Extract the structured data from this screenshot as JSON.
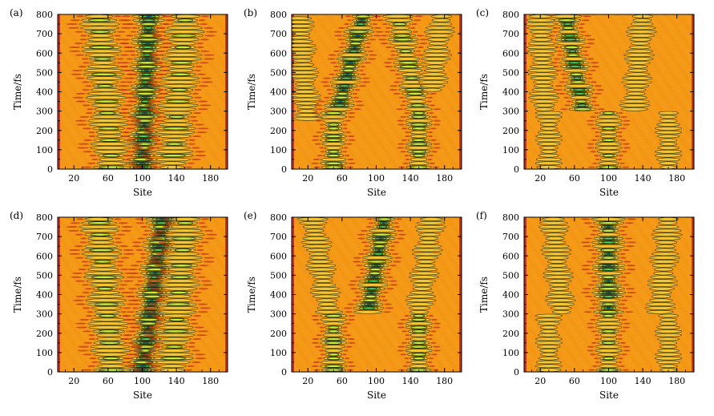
{
  "chart_data": [
    {
      "panel": "a",
      "type": "heatmap",
      "label": "(a)",
      "xlabel": "Site",
      "ylabel": "Time/fs",
      "xlim": [
        1,
        200
      ],
      "ylim": [
        0,
        800
      ],
      "xticks": [
        20,
        60,
        100,
        140,
        180
      ],
      "yticks": [
        0,
        100,
        200,
        300,
        400,
        500,
        600,
        700,
        800
      ],
      "wave_packets": [
        {
          "center_site": 100,
          "start_time": 0,
          "end_time": 800,
          "drift_sites_per_fs": 0.01,
          "width": 10,
          "strength": 1.0
        },
        {
          "center_site": 65,
          "start_time": 0,
          "end_time": 800,
          "drift_sites_per_fs": -0.02,
          "width": 12,
          "strength": 0.55
        },
        {
          "center_site": 135,
          "start_time": 0,
          "end_time": 800,
          "drift_sites_per_fs": 0.02,
          "width": 12,
          "strength": 0.55
        }
      ]
    },
    {
      "panel": "b",
      "type": "heatmap",
      "label": "(b)",
      "xlabel": "Site",
      "ylabel": "Time/fs",
      "xlim": [
        1,
        200
      ],
      "ylim": [
        0,
        800
      ],
      "xticks": [
        20,
        60,
        100,
        140,
        180
      ],
      "yticks": [
        0,
        100,
        200,
        300,
        400,
        500,
        600,
        700,
        800
      ],
      "wave_packets": [
        {
          "center_site": 50,
          "start_time": 0,
          "end_time": 300,
          "drift_sites_per_fs": 0.0,
          "width": 8,
          "strength": 0.7
        },
        {
          "center_site": 150,
          "start_time": 0,
          "end_time": 300,
          "drift_sites_per_fs": 0.0,
          "width": 8,
          "strength": 0.7
        },
        {
          "center_site": 55,
          "start_time": 300,
          "end_time": 800,
          "drift_sites_per_fs": 0.06,
          "width": 9,
          "strength": 0.9
        },
        {
          "center_site": 150,
          "start_time": 300,
          "end_time": 800,
          "drift_sites_per_fs": -0.05,
          "width": 9,
          "strength": 0.6
        },
        {
          "center_site": 20,
          "start_time": 250,
          "end_time": 800,
          "drift_sites_per_fs": -0.02,
          "width": 9,
          "strength": 0.45
        },
        {
          "center_site": 165,
          "start_time": 400,
          "end_time": 800,
          "drift_sites_per_fs": 0.03,
          "width": 9,
          "strength": 0.4
        }
      ]
    },
    {
      "panel": "c",
      "type": "heatmap",
      "label": "(c)",
      "xlabel": "Site",
      "ylabel": "Time/fs",
      "xlim": [
        1,
        200
      ],
      "ylim": [
        0,
        800
      ],
      "xticks": [
        20,
        60,
        100,
        140,
        180
      ],
      "yticks": [
        0,
        100,
        200,
        300,
        400,
        500,
        600,
        700,
        800
      ],
      "wave_packets": [
        {
          "center_site": 30,
          "start_time": 0,
          "end_time": 300,
          "drift_sites_per_fs": 0.0,
          "width": 8,
          "strength": 0.45
        },
        {
          "center_site": 100,
          "start_time": 0,
          "end_time": 300,
          "drift_sites_per_fs": 0.0,
          "width": 8,
          "strength": 0.55
        },
        {
          "center_site": 170,
          "start_time": 0,
          "end_time": 300,
          "drift_sites_per_fs": 0.0,
          "width": 8,
          "strength": 0.45
        },
        {
          "center_site": 70,
          "start_time": 300,
          "end_time": 800,
          "drift_sites_per_fs": -0.04,
          "width": 9,
          "strength": 0.85
        },
        {
          "center_site": 25,
          "start_time": 300,
          "end_time": 800,
          "drift_sites_per_fs": -0.01,
          "width": 9,
          "strength": 0.45
        },
        {
          "center_site": 130,
          "start_time": 300,
          "end_time": 800,
          "drift_sites_per_fs": 0.02,
          "width": 9,
          "strength": 0.4
        }
      ]
    },
    {
      "panel": "d",
      "type": "heatmap",
      "label": "(d)",
      "xlabel": "Site",
      "ylabel": "Time/fs",
      "xlim": [
        1,
        200
      ],
      "ylim": [
        0,
        800
      ],
      "xticks": [
        20,
        60,
        100,
        140,
        180
      ],
      "yticks": [
        0,
        100,
        200,
        300,
        400,
        500,
        600,
        700,
        800
      ],
      "wave_packets": [
        {
          "center_site": 100,
          "start_time": 0,
          "end_time": 800,
          "drift_sites_per_fs": 0.03,
          "width": 10,
          "strength": 1.0
        },
        {
          "center_site": 65,
          "start_time": 0,
          "end_time": 800,
          "drift_sites_per_fs": -0.02,
          "width": 12,
          "strength": 0.6
        },
        {
          "center_site": 135,
          "start_time": 0,
          "end_time": 800,
          "drift_sites_per_fs": 0.02,
          "width": 12,
          "strength": 0.55
        }
      ]
    },
    {
      "panel": "e",
      "type": "heatmap",
      "label": "(e)",
      "xlabel": "Site",
      "ylabel": "Time/fs",
      "xlim": [
        1,
        200
      ],
      "ylim": [
        0,
        800
      ],
      "xticks": [
        20,
        60,
        100,
        140,
        180
      ],
      "yticks": [
        0,
        100,
        200,
        300,
        400,
        500,
        600,
        700,
        800
      ],
      "wave_packets": [
        {
          "center_site": 50,
          "start_time": 0,
          "end_time": 300,
          "drift_sites_per_fs": 0.0,
          "width": 8,
          "strength": 0.7
        },
        {
          "center_site": 150,
          "start_time": 0,
          "end_time": 300,
          "drift_sites_per_fs": 0.0,
          "width": 8,
          "strength": 0.7
        },
        {
          "center_site": 90,
          "start_time": 300,
          "end_time": 800,
          "drift_sites_per_fs": 0.04,
          "width": 9,
          "strength": 0.9
        },
        {
          "center_site": 45,
          "start_time": 300,
          "end_time": 800,
          "drift_sites_per_fs": -0.04,
          "width": 9,
          "strength": 0.5
        },
        {
          "center_site": 150,
          "start_time": 300,
          "end_time": 800,
          "drift_sites_per_fs": 0.03,
          "width": 9,
          "strength": 0.45
        }
      ]
    },
    {
      "panel": "f",
      "type": "heatmap",
      "label": "(f)",
      "xlabel": "Site",
      "ylabel": "Time/fs",
      "xlim": [
        1,
        200
      ],
      "ylim": [
        0,
        800
      ],
      "xticks": [
        20,
        60,
        100,
        140,
        180
      ],
      "yticks": [
        0,
        100,
        200,
        300,
        400,
        500,
        600,
        700,
        800
      ],
      "wave_packets": [
        {
          "center_site": 30,
          "start_time": 0,
          "end_time": 300,
          "drift_sites_per_fs": 0.0,
          "width": 8,
          "strength": 0.45
        },
        {
          "center_site": 100,
          "start_time": 0,
          "end_time": 300,
          "drift_sites_per_fs": 0.0,
          "width": 8,
          "strength": 0.55
        },
        {
          "center_site": 170,
          "start_time": 0,
          "end_time": 300,
          "drift_sites_per_fs": 0.0,
          "width": 8,
          "strength": 0.45
        },
        {
          "center_site": 100,
          "start_time": 300,
          "end_time": 800,
          "drift_sites_per_fs": 0.0,
          "width": 10,
          "strength": 0.9
        },
        {
          "center_site": 45,
          "start_time": 300,
          "end_time": 800,
          "drift_sites_per_fs": -0.02,
          "width": 9,
          "strength": 0.45
        },
        {
          "center_site": 160,
          "start_time": 300,
          "end_time": 800,
          "drift_sites_per_fs": 0.02,
          "width": 9,
          "strength": 0.45
        }
      ]
    }
  ],
  "colors": {
    "background": "#f7a21c",
    "ripple": "#f08a10",
    "low": "#f5c433",
    "mid": "#c8e836",
    "high": "#4fd860",
    "peak": "#1e8f9a",
    "core": "#1b3a7a",
    "edge": "#c0341a",
    "contour": "#1f2b10"
  }
}
